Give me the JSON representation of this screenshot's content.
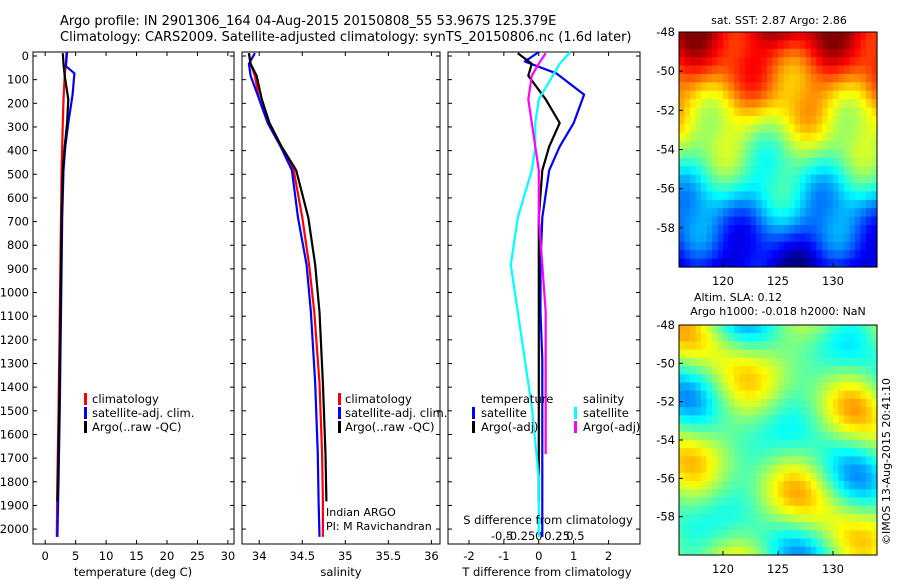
{
  "header": {
    "line1": "Argo profile: IN 2901306_164 04-Aug-2015 20150808_55 53.967S 125.379E",
    "line2": "Climatology: CARS2009. Satellite-adjusted climatology: synTS_20150806.nc (1.6d later)"
  },
  "colors": {
    "climatology": "#ff0000",
    "satellite": "#0000ff",
    "argo": "#000000",
    "satellite_salinity": "#00ffff",
    "argo_salinity": "#ff00ff"
  },
  "chart_data": [
    {
      "type": "line",
      "xlabel": "temperature (deg C)",
      "ylabel": "",
      "xlim": [
        -2,
        31
      ],
      "ylim": [
        2080,
        0
      ],
      "y_reversed": true,
      "xticks": [
        0,
        5,
        10,
        15,
        20,
        25,
        30
      ],
      "yticks": [
        0,
        100,
        200,
        300,
        400,
        500,
        600,
        700,
        800,
        900,
        1000,
        1100,
        1200,
        1300,
        1400,
        1500,
        1600,
        1700,
        1800,
        1900,
        2000
      ],
      "legend": [
        "climatology",
        "satellite-adj. clim.",
        "Argo(..raw -QC)"
      ],
      "series": [
        {
          "name": "climatology",
          "color": "#ff0000",
          "x": [
            3.5,
            3.4,
            3.2,
            3.0,
            2.9,
            2.8,
            2.7,
            2.6,
            2.5,
            2.4,
            2.3,
            2.2,
            2.0,
            1.9
          ],
          "y": [
            0,
            50,
            100,
            200,
            300,
            400,
            500,
            700,
            900,
            1100,
            1300,
            1500,
            1800,
            2050
          ]
        },
        {
          "name": "satellite-adj. clim.",
          "color": "#0000ff",
          "x": [
            3.6,
            3.4,
            4.8,
            4.5,
            3.8,
            3.3,
            3.0,
            2.8,
            2.7,
            2.6,
            2.5,
            2.4,
            2.2,
            2.0
          ],
          "y": [
            0,
            60,
            90,
            180,
            300,
            400,
            500,
            700,
            900,
            1100,
            1300,
            1500,
            1800,
            2050
          ]
        },
        {
          "name": "Argo(..raw -QC)",
          "color": "#000000",
          "x": [
            2.9,
            3.0,
            3.2,
            3.8,
            3.6,
            3.2,
            2.9,
            2.7,
            2.6,
            2.5,
            2.4,
            2.3,
            2.1,
            2.0
          ],
          "y": [
            5,
            50,
            100,
            200,
            300,
            400,
            500,
            700,
            900,
            1100,
            1300,
            1500,
            1800,
            1900
          ]
        }
      ]
    },
    {
      "type": "line",
      "xlabel": "salinity",
      "ylabel": "",
      "xlim": [
        33.8,
        36.1
      ],
      "ylim": [
        2080,
        0
      ],
      "y_reversed": true,
      "xticks": [
        34,
        34.5,
        35,
        35.5,
        36
      ],
      "legend": [
        "climatology",
        "satellite-adj. clim.",
        "Argo(..raw -QC)"
      ],
      "annotations": [
        "Indian ARGO",
        "PI: M Ravichandran"
      ],
      "series": [
        {
          "name": "climatology",
          "color": "#ff0000",
          "x": [
            33.88,
            33.9,
            33.95,
            34.0,
            34.1,
            34.25,
            34.4,
            34.5,
            34.58,
            34.64,
            34.7,
            34.73,
            34.74,
            34.74
          ],
          "y": [
            5,
            50,
            100,
            200,
            300,
            400,
            500,
            700,
            900,
            1100,
            1400,
            1700,
            1900,
            2050
          ]
        },
        {
          "name": "satellite-adj. clim.",
          "color": "#0000ff",
          "x": [
            33.95,
            33.88,
            33.9,
            34.0,
            34.1,
            34.25,
            34.38,
            34.45,
            34.55,
            34.6,
            34.65,
            34.68,
            34.69,
            34.7
          ],
          "y": [
            5,
            50,
            100,
            200,
            300,
            400,
            500,
            700,
            900,
            1100,
            1400,
            1700,
            1900,
            2050
          ]
        },
        {
          "name": "Argo(..raw -QC)",
          "color": "#000000",
          "x": [
            33.88,
            33.9,
            33.97,
            34.03,
            34.12,
            34.26,
            34.43,
            34.57,
            34.65,
            34.7,
            34.74,
            34.77,
            34.78
          ],
          "y": [
            5,
            50,
            100,
            200,
            300,
            400,
            500,
            700,
            900,
            1100,
            1400,
            1700,
            1900
          ]
        }
      ]
    },
    {
      "type": "line",
      "xlabel": "T difference from climatology",
      "secondary_xlabel": "S difference from climatology",
      "ylabel": "",
      "xlim": [
        -2.6,
        2.9
      ],
      "ylim": [
        2080,
        0
      ],
      "y_reversed": true,
      "xticks": [
        -2,
        -1,
        0,
        1,
        2
      ],
      "secondary_xticks": [
        "-0.5",
        "-0.25",
        "0",
        "0.25",
        "0.5"
      ],
      "legend": [
        "temperature",
        "satellite",
        "Argo(-adj)",
        "salinity",
        "satellite",
        "Argo(-adj)"
      ],
      "series": [
        {
          "name": "satellite",
          "variable": "temperature",
          "color": "#0000ff",
          "x": [
            0.0,
            -0.4,
            0.5,
            1.3,
            1.0,
            0.6,
            0.3,
            0.1,
            0.05,
            0.05,
            0.1,
            0.1,
            0.1,
            0.1
          ],
          "y": [
            0,
            40,
            90,
            180,
            300,
            400,
            500,
            700,
            900,
            1100,
            1300,
            1500,
            1800,
            2050
          ]
        },
        {
          "name": "Argo(-adj)",
          "variable": "temperature",
          "color": "#000000",
          "x": [
            -0.6,
            -0.2,
            -0.3,
            0.2,
            0.6,
            0.3,
            0.1,
            0.0,
            0.0,
            0.0,
            0.0,
            0.0,
            0.0
          ],
          "y": [
            5,
            50,
            100,
            200,
            300,
            400,
            500,
            700,
            900,
            1100,
            1300,
            1500,
            1900
          ]
        },
        {
          "name": "satellite",
          "variable": "salinity",
          "color": "#00ffff",
          "x": [
            0.45,
            0.3,
            0.2,
            0.0,
            -0.05,
            -0.05,
            -0.1,
            -0.3,
            -0.4,
            -0.3,
            -0.2,
            -0.1,
            0.0,
            0.0
          ],
          "y": [
            0,
            50,
            100,
            200,
            300,
            400,
            500,
            700,
            900,
            1100,
            1300,
            1500,
            1800,
            2050
          ]
        },
        {
          "name": "Argo(-adj)",
          "variable": "salinity",
          "color": "#ff00ff",
          "x": [
            0.1,
            0.0,
            -0.1,
            -0.15,
            -0.1,
            -0.05,
            0.0,
            0.0,
            0.05,
            0.1,
            0.1,
            0.1
          ],
          "y": [
            5,
            50,
            100,
            200,
            300,
            400,
            500,
            700,
            900,
            1100,
            1400,
            1700
          ]
        }
      ]
    },
    {
      "type": "heatmap",
      "title": "sat. SST: 2.87 Argo: 2.86",
      "xlim": [
        116,
        134
      ],
      "ylim": [
        -60,
        -48
      ],
      "xticks": [
        120,
        125,
        130
      ],
      "yticks": [
        -48,
        -50,
        -52,
        -54,
        -56,
        -58
      ],
      "colormap": "jet",
      "gradient": "warm (north) to cold (south)"
    },
    {
      "type": "heatmap",
      "title_line1": "Altim. SLA: 0.12",
      "title_line2": "Argo h1000: -0.018 h2000: NaN",
      "xlim": [
        116,
        134
      ],
      "ylim": [
        -60,
        -48
      ],
      "xticks": [
        120,
        125,
        130
      ],
      "yticks": [
        -48,
        -50,
        -52,
        -54,
        -56,
        -58
      ],
      "colormap": "jet",
      "gradient": "patchy near zero"
    }
  ],
  "watermark": "©IMOS 13-Aug-2015 20:41:10"
}
